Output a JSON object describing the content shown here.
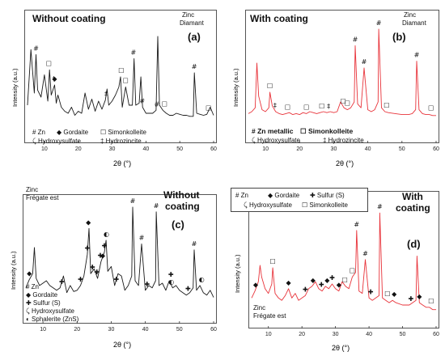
{
  "x_axis_label": "2θ (°)",
  "y_axis_label": "Intensity (a.u.)",
  "x_ticks": [
    10,
    20,
    30,
    40,
    50,
    60
  ],
  "colors": {
    "uncoated": "#1a1a1a",
    "coated": "#e8333a"
  },
  "chart_data": [
    {
      "type": "line",
      "panel": "(a)",
      "title": "Without coating",
      "sample": [
        "Zinc",
        "Diamant"
      ],
      "xlabel": "2θ (°)",
      "ylabel": "Intensity (a.u.)",
      "xlim": [
        5,
        60
      ],
      "legend_placement": "bottom-left",
      "legend": [
        "# Zn",
        "◆ Gordaite",
        "☐ Simonkolleite",
        "Hydroxysulfate",
        "‡ Hydrozincite"
      ],
      "series": [
        {
          "name": "Without coating",
          "color": "#1a1a1a",
          "x": [
            5,
            6,
            7,
            7.5,
            8,
            9,
            10,
            11,
            11.5,
            12,
            13,
            13.5,
            14,
            15,
            16,
            17,
            18,
            19,
            20,
            21,
            22,
            23,
            24,
            25,
            26,
            27,
            28,
            28.5,
            29,
            30,
            31,
            32,
            32.5,
            33,
            34,
            35,
            36,
            36.5,
            37,
            38,
            38.5,
            39,
            40,
            41,
            42,
            43,
            43.5,
            44,
            45,
            46,
            47,
            48,
            49,
            50,
            51,
            52,
            53,
            54,
            54.3,
            55,
            56,
            57,
            58,
            59,
            60
          ],
          "y": [
            20,
            75,
            32,
            70,
            35,
            28,
            50,
            24,
            55,
            30,
            40,
            22,
            30,
            18,
            14,
            12,
            18,
            10,
            14,
            12,
            32,
            16,
            26,
            14,
            24,
            16,
            25,
            36,
            20,
            24,
            30,
            38,
            48,
            18,
            38,
            20,
            20,
            66,
            20,
            22,
            48,
            18,
            12,
            12,
            12,
            15,
            88,
            20,
            15,
            12,
            10,
            10,
            12,
            11,
            10,
            10,
            9,
            9,
            52,
            12,
            11,
            10,
            11,
            18,
            10
          ]
        }
      ],
      "markers": [
        {
          "symbol": "#",
          "x": 7.5
        },
        {
          "symbol": "#",
          "x": 36.3
        },
        {
          "symbol": "#",
          "x": 38.9
        },
        {
          "symbol": "#",
          "x": 43.2
        },
        {
          "symbol": "#",
          "x": 54.3
        },
        {
          "symbol": "☐",
          "x": 11.3
        },
        {
          "symbol": "☐",
          "x": 32.7
        },
        {
          "symbol": "☐",
          "x": 34.0
        },
        {
          "symbol": "☐",
          "x": 45.5
        },
        {
          "symbol": "☐",
          "x": 58.5
        },
        {
          "symbol": "◆",
          "x": 13.0
        },
        {
          "symbol": "‡",
          "x": 12.8
        },
        {
          "symbol": "‡",
          "x": 28.2
        }
      ]
    },
    {
      "type": "line",
      "panel": "(b)",
      "title": "With coating",
      "sample": [
        "Zinc",
        "Diamant"
      ],
      "xlabel": "2θ (°)",
      "ylabel": "Intensity (a.u.)",
      "xlim": [
        5,
        60
      ],
      "legend_placement": "bottom-left",
      "legend": [
        "# Zn metallic",
        "☐ Simonkolleite",
        "Hydroxysulfate",
        "‡ Hydrozincite"
      ],
      "series": [
        {
          "name": "With coating",
          "color": "#e8333a",
          "x": [
            5,
            6,
            7,
            7.5,
            8,
            9,
            10,
            11,
            11.3,
            12,
            13,
            14,
            15,
            16,
            17,
            18,
            19,
            20,
            21,
            22,
            23,
            24,
            25,
            26,
            27,
            28,
            29,
            30,
            31,
            32,
            33,
            34,
            35,
            36,
            36.3,
            37,
            38,
            38.9,
            40,
            41,
            42,
            43,
            43.2,
            44,
            45,
            46,
            48,
            50,
            52,
            53,
            54,
            54.3,
            55,
            56,
            57,
            58,
            59,
            60
          ],
          "y": [
            8,
            10,
            14,
            60,
            26,
            12,
            10,
            14,
            30,
            16,
            10,
            8,
            7,
            8,
            9,
            7,
            8,
            7,
            9,
            8,
            10,
            9,
            8,
            9,
            10,
            9,
            10,
            9,
            10,
            20,
            14,
            12,
            14,
            20,
            78,
            18,
            14,
            55,
            12,
            10,
            12,
            20,
            95,
            14,
            10,
            9,
            8,
            7,
            7,
            8,
            12,
            62,
            12,
            8,
            7,
            7,
            6,
            6
          ]
        }
      ],
      "markers": [
        {
          "symbol": "#",
          "x": 36.3
        },
        {
          "symbol": "#",
          "x": 38.9
        },
        {
          "symbol": "#",
          "x": 43.2
        },
        {
          "symbol": "#",
          "x": 54.3
        },
        {
          "symbol": "☐",
          "x": 11.3
        },
        {
          "symbol": "☐",
          "x": 16.5
        },
        {
          "symbol": "☐",
          "x": 22.0
        },
        {
          "symbol": "☐",
          "x": 26.5
        },
        {
          "symbol": "☐",
          "x": 32.8
        },
        {
          "symbol": "☐",
          "x": 34.0
        },
        {
          "symbol": "☐",
          "x": 45.5
        },
        {
          "symbol": "☐",
          "x": 58.5
        },
        {
          "symbol": "‡",
          "x": 12.8
        },
        {
          "symbol": "‡",
          "x": 28.5
        }
      ]
    },
    {
      "type": "line",
      "panel": "(c)",
      "title": "Without coating",
      "sample": [
        "Zinc",
        "Frégate est"
      ],
      "xlabel": "2θ (°)",
      "ylabel": "Intensity (a.u.)",
      "xlim": [
        5,
        60
      ],
      "legend_placement": "bottom-left",
      "legend": [
        "# Zn",
        "◆ Gordaite",
        "✚ Sulfur (S)",
        "Hydroxysulfate",
        "◐ Sphalerite (ZnS)"
      ],
      "series": [
        {
          "name": "Without coating",
          "color": "#1a1a1a",
          "x": [
            5,
            6,
            7,
            7.5,
            8,
            9,
            10,
            11,
            12,
            13,
            14,
            15,
            16,
            17,
            18,
            19,
            20,
            21,
            22,
            23,
            23.5,
            24,
            25,
            26,
            27,
            28,
            28.5,
            29,
            30,
            31,
            32,
            33,
            34,
            35,
            36,
            36.3,
            37,
            38,
            38.9,
            40,
            41,
            42,
            43,
            43.2,
            44,
            45,
            46,
            47,
            48,
            49,
            50,
            51,
            52,
            53,
            54,
            54.3,
            55,
            56,
            57,
            58,
            59,
            60
          ],
          "y": [
            28,
            35,
            40,
            62,
            36,
            30,
            32,
            34,
            30,
            28,
            26,
            28,
            38,
            24,
            30,
            25,
            26,
            30,
            38,
            56,
            78,
            40,
            44,
            36,
            50,
            58,
            68,
            42,
            46,
            30,
            40,
            38,
            26,
            30,
            38,
            96,
            34,
            30,
            65,
            26,
            30,
            28,
            34,
            92,
            30,
            32,
            26,
            34,
            28,
            30,
            26,
            24,
            22,
            24,
            28,
            60,
            26,
            30,
            24,
            22,
            26,
            20
          ]
        }
      ],
      "markers": [
        {
          "symbol": "#",
          "x": 36.3
        },
        {
          "symbol": "#",
          "x": 38.9
        },
        {
          "symbol": "#",
          "x": 43.2
        },
        {
          "symbol": "#",
          "x": 54.3
        },
        {
          "symbol": "◆",
          "x": 6.0
        },
        {
          "symbol": "◆",
          "x": 23.3
        },
        {
          "symbol": "◆",
          "x": 27.5
        },
        {
          "symbol": "✚",
          "x": 15.5
        },
        {
          "symbol": "✚",
          "x": 21.0
        },
        {
          "symbol": "✚",
          "x": 23.0
        },
        {
          "symbol": "✚",
          "x": 24.5
        },
        {
          "symbol": "✚",
          "x": 25.8
        },
        {
          "symbol": "✚",
          "x": 26.8
        },
        {
          "symbol": "✚",
          "x": 28.0
        },
        {
          "symbol": "✚",
          "x": 31.5
        },
        {
          "symbol": "✚",
          "x": 40.5
        },
        {
          "symbol": "✚",
          "x": 47.5
        },
        {
          "symbol": "✚",
          "x": 52.5
        },
        {
          "symbol": "◐",
          "x": 28.6
        },
        {
          "symbol": "◐",
          "x": 47.6
        },
        {
          "symbol": "◐",
          "x": 56.5
        }
      ]
    },
    {
      "type": "line",
      "panel": "(d)",
      "title": "With coating",
      "sample": [
        "Zinc",
        "Frégate est"
      ],
      "xlabel": "2θ (°)",
      "ylabel": "Intensity (a.u.)",
      "xlim": [
        5,
        60
      ],
      "legend_placement": "top-left",
      "legend": [
        "# Zn",
        "◆ Gordaite",
        "✚ Sulfur (S)",
        "Hydroxysulfate",
        "☐ Simonkolleite"
      ],
      "series": [
        {
          "name": "With coating",
          "color": "#e8333a",
          "x": [
            5,
            6,
            7,
            7.5,
            8,
            9,
            10,
            11,
            11.3,
            12,
            13,
            14,
            15,
            16,
            17,
            18,
            19,
            20,
            21,
            22,
            23,
            24,
            25,
            26,
            27,
            28,
            29,
            30,
            31,
            32,
            33,
            34,
            35,
            36,
            36.3,
            37,
            38,
            38.9,
            40,
            41,
            42,
            43,
            43.2,
            44,
            45,
            46,
            47,
            48,
            50,
            52,
            53,
            54,
            54.3,
            55,
            56,
            57,
            58,
            59,
            60
          ],
          "y": [
            22,
            28,
            36,
            50,
            40,
            30,
            26,
            34,
            48,
            26,
            22,
            20,
            24,
            30,
            22,
            26,
            20,
            22,
            24,
            30,
            32,
            36,
            30,
            28,
            32,
            30,
            34,
            30,
            28,
            36,
            32,
            30,
            40,
            44,
            80,
            28,
            26,
            55,
            22,
            20,
            22,
            24,
            95,
            22,
            20,
            18,
            20,
            18,
            16,
            16,
            18,
            20,
            58,
            18,
            16,
            14,
            14,
            12,
            12
          ]
        }
      ],
      "markers": [
        {
          "symbol": "#",
          "x": 36.3
        },
        {
          "symbol": "#",
          "x": 38.9
        },
        {
          "symbol": "#",
          "x": 43.2
        },
        {
          "symbol": "☐",
          "x": 11.3
        },
        {
          "symbol": "☐",
          "x": 32.8
        },
        {
          "symbol": "☐",
          "x": 35.0
        },
        {
          "symbol": "☐",
          "x": 45.5
        },
        {
          "symbol": "☐",
          "x": 58.5
        },
        {
          "symbol": "◆",
          "x": 6.2
        },
        {
          "symbol": "◆",
          "x": 16.0
        },
        {
          "symbol": "◆",
          "x": 23.3
        },
        {
          "symbol": "◆",
          "x": 27.5
        },
        {
          "symbol": "◆",
          "x": 31.0
        },
        {
          "symbol": "◆",
          "x": 47.5
        },
        {
          "symbol": "◆",
          "x": 55.0
        },
        {
          "symbol": "✚",
          "x": 21.0
        },
        {
          "symbol": "✚",
          "x": 25.8
        },
        {
          "symbol": "✚",
          "x": 29.0
        },
        {
          "symbol": "✚",
          "x": 40.5
        },
        {
          "symbol": "✚",
          "x": 52.5
        }
      ]
    }
  ]
}
